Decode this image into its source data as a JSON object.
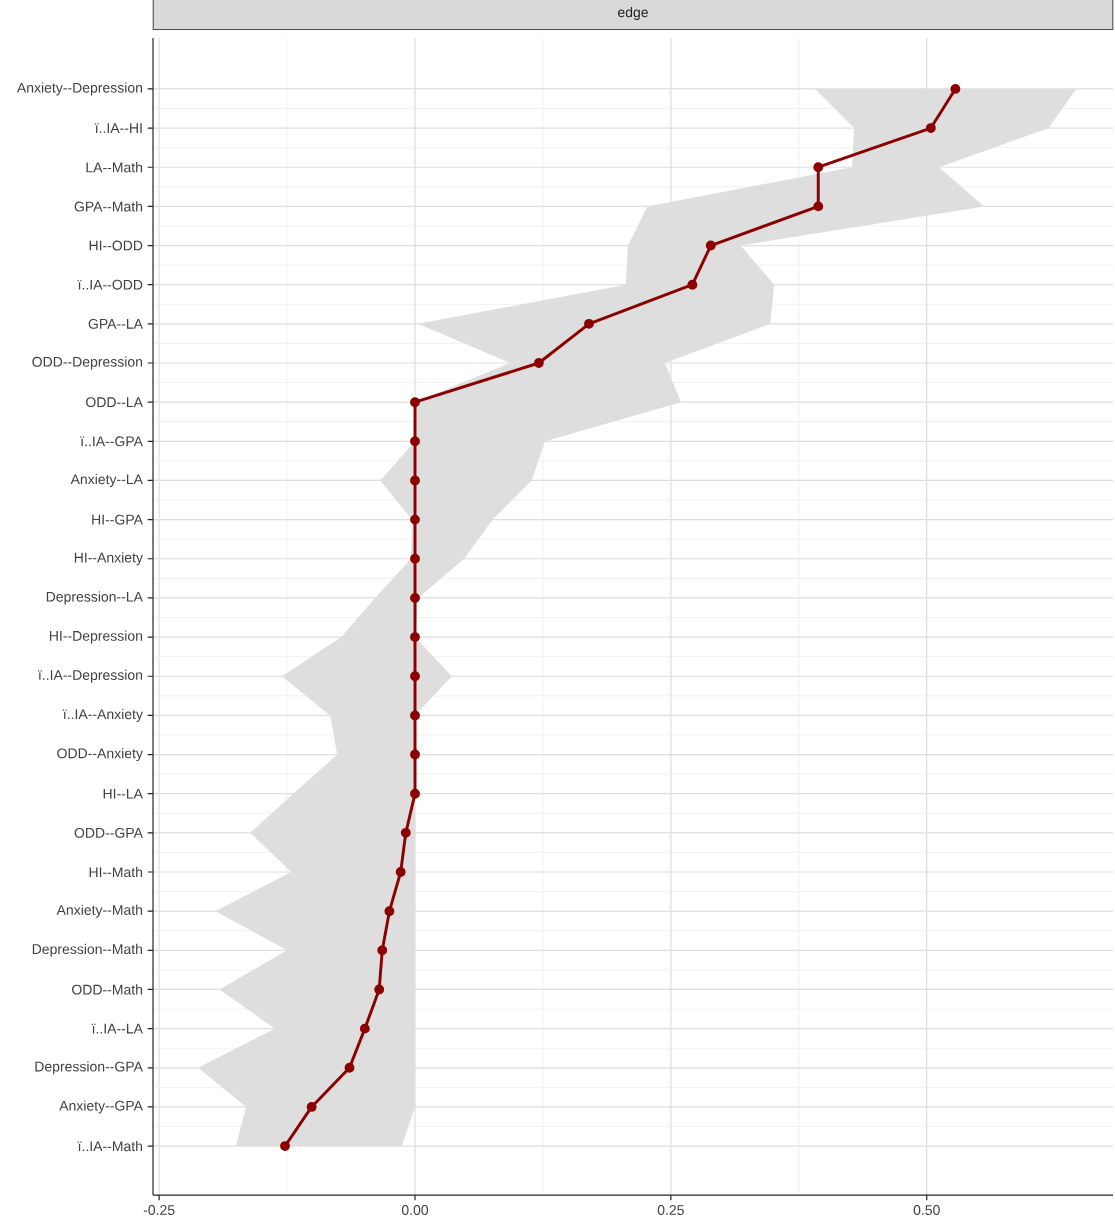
{
  "chart_data": {
    "type": "line",
    "orientation": "horizontal",
    "title": "edge",
    "categories": [
      "Anxiety--Depression",
      "ï..IA--HI",
      "LA--Math",
      "GPA--Math",
      "HI--ODD",
      "ï..IA--ODD",
      "GPA--LA",
      "ODD--Depression",
      "ODD--LA",
      "ï..IA--GPA",
      "Anxiety--LA",
      "HI--GPA",
      "HI--Anxiety",
      "Depression--LA",
      "HI--Depression",
      "ï..IA--Depression",
      "ï..IA--Anxiety",
      "ODD--Anxiety",
      "HI--LA",
      "ODD--GPA",
      "HI--Math",
      "Anxiety--Math",
      "Depression--Math",
      "ODD--Math",
      "ï..IA--LA",
      "Depression--GPA",
      "Anxiety--GPA",
      "ï..IA--Math"
    ],
    "series": [
      {
        "color": "#8b0000",
        "values": [
          0.528,
          0.504,
          0.394,
          0.394,
          0.289,
          0.271,
          0.17,
          0.121,
          0,
          0,
          0,
          0,
          0,
          0,
          0,
          0,
          0,
          0,
          0,
          -0.009,
          -0.014,
          -0.025,
          -0.032,
          -0.035,
          -0.049,
          -0.064,
          -0.101,
          -0.127
        ],
        "lower": [
          0.391,
          0.429,
          0.427,
          0.227,
          0.208,
          0.206,
          0.003,
          0.093,
          0,
          0,
          -0.034,
          -0.003,
          -0.004,
          -0.039,
          -0.072,
          -0.13,
          -0.083,
          -0.076,
          -0.119,
          -0.161,
          -0.121,
          -0.195,
          -0.125,
          -0.191,
          -0.137,
          -0.212,
          -0.165,
          -0.175
        ],
        "upper": [
          0.646,
          0.619,
          0.512,
          0.556,
          0.318,
          0.351,
          0.347,
          0.244,
          0.26,
          0.127,
          0.114,
          0.076,
          0.048,
          0.003,
          0,
          0.036,
          0,
          0,
          0,
          0,
          0,
          0,
          0,
          0,
          0,
          0,
          0,
          -0.013
        ]
      }
    ],
    "xlim": [
      -0.256,
      0.682
    ],
    "xticks": [
      {
        "value": -0.25,
        "label": "-0.25"
      },
      {
        "value": 0,
        "label": "0.00"
      },
      {
        "value": 0.25,
        "label": "0.25"
      },
      {
        "value": 0.5,
        "label": "0.50"
      }
    ],
    "grid": true,
    "marker": "circle"
  }
}
